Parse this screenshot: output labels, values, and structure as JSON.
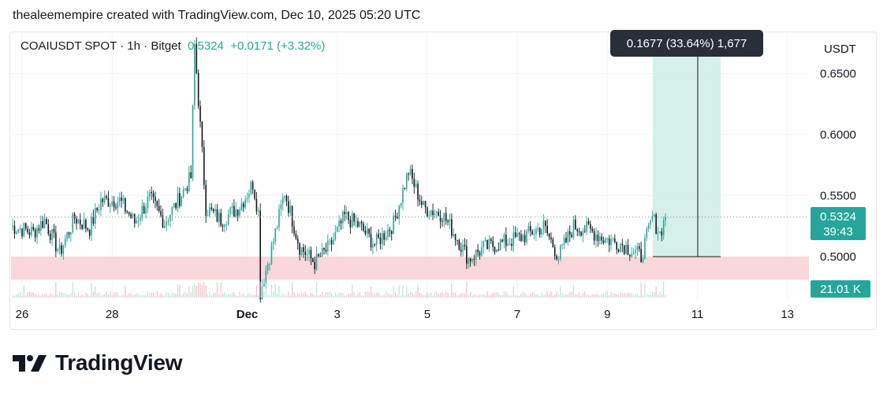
{
  "caption": "thealeemempire created with TradingView.com, Dec 10, 2025 05:20 UTC",
  "legend": {
    "symbol": "COAIUSDT SPOT · 1h · Bitget",
    "price": "0.5324",
    "change": "+0.0171 (+3.32%)"
  },
  "axis": {
    "currency": "USDT",
    "price_labels": [
      "0.6500",
      "0.6000",
      "0.5500",
      "0.5000"
    ],
    "current_price": "0.5324",
    "countdown": "39:43",
    "volume_label": "21.01 K",
    "date_labels": [
      "26",
      "28",
      "Dec",
      "3",
      "5",
      "7",
      "9",
      "11",
      "13"
    ]
  },
  "measure": {
    "label": "0.1677 (33.64%) 1,677"
  },
  "logo": {
    "text": "TradingView"
  },
  "colors": {
    "up": "#26a69a",
    "down": "#131722",
    "zone": "#f9d0d4",
    "measure": "#cfeee7",
    "tooltip": "#2a2e39"
  },
  "chart_data": {
    "type": "candlestick",
    "interval": "1h",
    "y_range": [
      0.435,
      0.68
    ],
    "x_range": [
      "Nov 25",
      "Dec 14"
    ],
    "support_zone": [
      0.481,
      0.5
    ],
    "measure": {
      "from": 0.5,
      "to": 0.668,
      "change": 0.1677,
      "percent": 33.64,
      "bars": 1677
    },
    "path": [
      [
        "Nov 25 18:00",
        0.525
      ],
      [
        "Nov 26 06:00",
        0.52
      ],
      [
        "Nov 26 12:00",
        0.53
      ],
      [
        "Nov 26 20:00",
        0.503
      ],
      [
        "Nov 27 04:00",
        0.532
      ],
      [
        "Nov 27 12:00",
        0.523
      ],
      [
        "Nov 27 18:00",
        0.546
      ],
      [
        "Nov 28 04:00",
        0.546
      ],
      [
        "Nov 28 12:00",
        0.528
      ],
      [
        "Nov 28 20:00",
        0.548
      ],
      [
        "Nov 29 04:00",
        0.528
      ],
      [
        "Nov 29 10:00",
        0.543
      ],
      [
        "Nov 29 18:00",
        0.565
      ],
      [
        "Nov 29 20:00",
        0.673
      ],
      [
        "Nov 30 02:00",
        0.54
      ],
      [
        "Nov 30 10:00",
        0.53
      ],
      [
        "Nov 30 20:00",
        0.541
      ],
      [
        "Dec 1 03:00",
        0.56
      ],
      [
        "Dec 1 06:00",
        0.536
      ],
      [
        "Dec 1 07:00",
        0.471
      ],
      [
        "Dec 1 14:00",
        0.513
      ],
      [
        "Dec 1 20:00",
        0.553
      ],
      [
        "Dec 2 04:00",
        0.508
      ],
      [
        "Dec 2 12:00",
        0.495
      ],
      [
        "Dec 2 20:00",
        0.508
      ],
      [
        "Dec 3 04:00",
        0.533
      ],
      [
        "Dec 3 12:00",
        0.525
      ],
      [
        "Dec 3 20:00",
        0.51
      ],
      [
        "Dec 4 06:00",
        0.527
      ],
      [
        "Dec 4 14:00",
        0.57
      ],
      [
        "Dec 4 22:00",
        0.54
      ],
      [
        "Dec 5 08:00",
        0.535
      ],
      [
        "Dec 5 16:00",
        0.515
      ],
      [
        "Dec 5 22:00",
        0.498
      ],
      [
        "Dec 6 06:00",
        0.507
      ],
      [
        "Dec 6 18:00",
        0.512
      ],
      [
        "Dec 7 04:00",
        0.517
      ],
      [
        "Dec 7 14:00",
        0.525
      ],
      [
        "Dec 7 22:00",
        0.5
      ],
      [
        "Dec 8 06:00",
        0.525
      ],
      [
        "Dec 8 14:00",
        0.522
      ],
      [
        "Dec 8 22:00",
        0.515
      ],
      [
        "Dec 9 08:00",
        0.51
      ],
      [
        "Dec 9 18:00",
        0.5
      ],
      [
        "Dec 10 00:00",
        0.532
      ],
      [
        "Dec 10 04:00",
        0.519
      ],
      [
        "Dec 10 07:00",
        0.5324
      ]
    ],
    "volume": "21.01 K"
  }
}
